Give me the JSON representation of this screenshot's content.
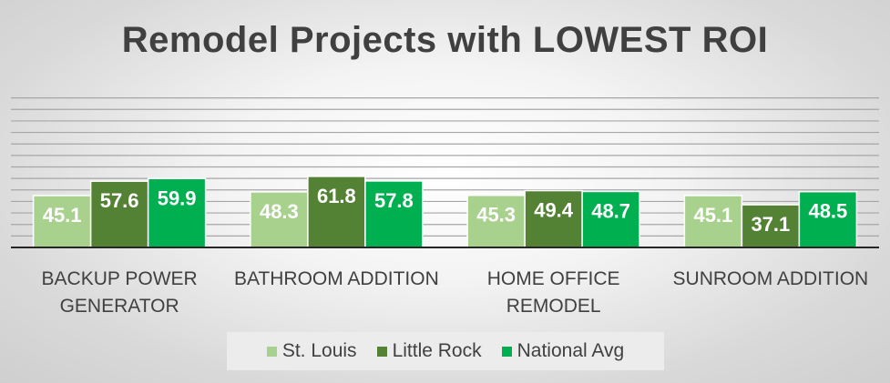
{
  "chart_data": {
    "type": "bar",
    "title": "Remodel Projects with LOWEST ROI",
    "categories": [
      [
        "BACKUP POWER",
        "GENERATOR"
      ],
      [
        "BATHROOM ADDITION"
      ],
      [
        "HOME OFFICE",
        "REMODEL"
      ],
      [
        "SUNROOM ADDITION"
      ]
    ],
    "series": [
      {
        "name": "St. Louis",
        "color": "#a9d18e",
        "values": [
          45.1,
          48.3,
          45.3,
          45.1
        ]
      },
      {
        "name": "Little Rock",
        "color": "#548235",
        "values": [
          57.6,
          61.8,
          49.4,
          37.1
        ]
      },
      {
        "name": "National Avg",
        "color": "#00b050",
        "values": [
          59.9,
          57.8,
          48.7,
          48.5
        ]
      }
    ],
    "xlabel": "",
    "ylabel": "",
    "ylim": [
      0,
      140
    ],
    "grid": true,
    "legend": "bottom",
    "data_labels": true
  }
}
